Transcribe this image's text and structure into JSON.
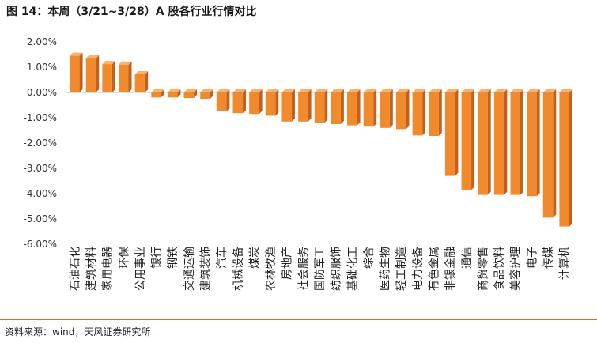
{
  "header": {
    "title": "图 14：本周（3/21~3/28）A 股各行业行情对比"
  },
  "footer": {
    "source": "资料来源：wind，天风证券研究所"
  },
  "colors": {
    "bar_front": "#f08a2c",
    "bar_side": "#c4601b",
    "bar_top": "#f6b36f",
    "accent_rule": "#e06c1a"
  },
  "chart_data": {
    "type": "bar",
    "style": "3d-column",
    "title": "",
    "xlabel": "",
    "ylabel": "",
    "ylim": [
      -6,
      2
    ],
    "yticks": [
      "2.00%",
      "1.00%",
      "0.00%",
      "-1.00%",
      "-2.00%",
      "-3.00%",
      "-4.00%",
      "-5.00%",
      "-6.00%"
    ],
    "grid": false,
    "legend": "none",
    "categories": [
      "石油石化",
      "建筑材料",
      "家用电器",
      "环保",
      "公用事业",
      "银行",
      "钢铁",
      "交通运输",
      "建筑装饰",
      "汽车",
      "机械设备",
      "煤炭",
      "农林牧渔",
      "房地产",
      "社会服务",
      "国防军工",
      "纺织服饰",
      "基础化工",
      "综合",
      "医药生物",
      "轻工制造",
      "电力设备",
      "有色金属",
      "非银金融",
      "通信",
      "商贸零售",
      "食品饮料",
      "美容护理",
      "电子",
      "传媒",
      "计算机"
    ],
    "values": [
      1.45,
      1.35,
      1.12,
      1.1,
      0.72,
      -0.2,
      -0.2,
      -0.22,
      -0.25,
      -0.75,
      -0.82,
      -0.85,
      -0.92,
      -1.15,
      -1.15,
      -1.2,
      -1.25,
      -1.3,
      -1.35,
      -1.4,
      -1.45,
      -1.7,
      -1.72,
      -3.3,
      -3.85,
      -4.05,
      -4.05,
      -4.05,
      -4.1,
      -4.95,
      -5.3
    ]
  }
}
